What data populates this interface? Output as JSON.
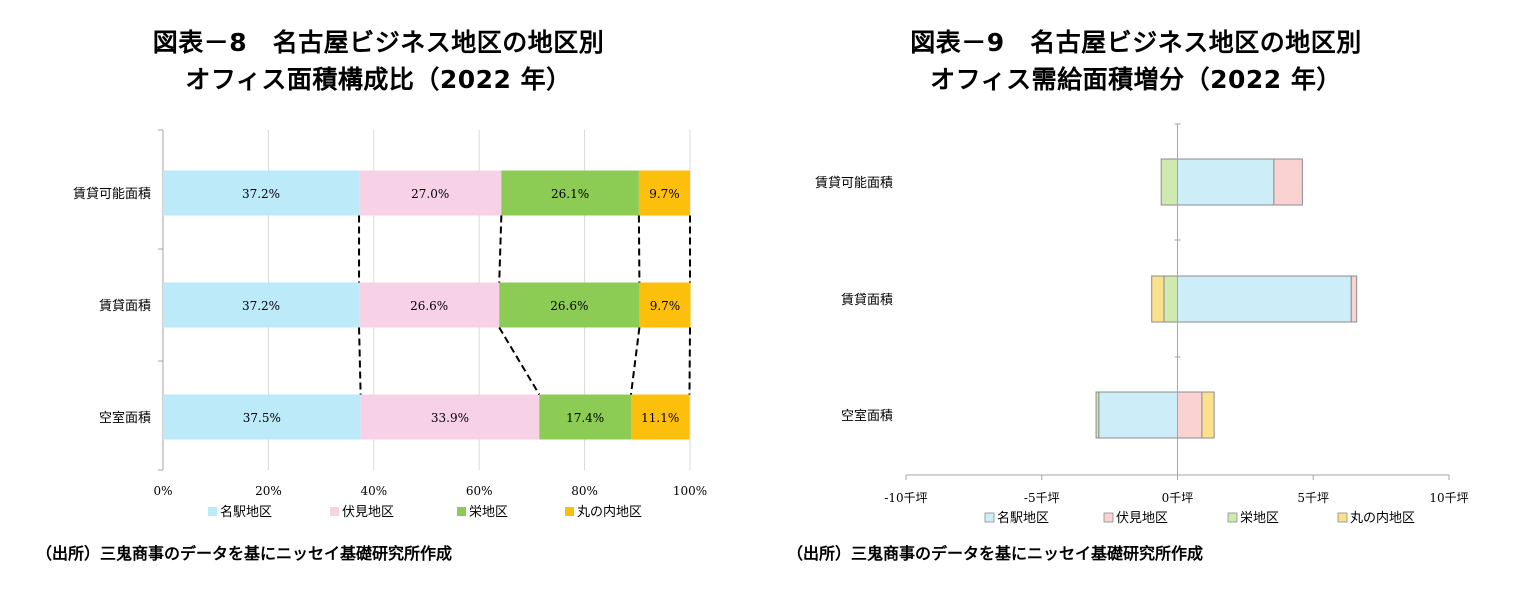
{
  "source_left": "（出所）三鬼商事のデータを基にニッセイ基礎研究所作成",
  "source_right": "（出所）三鬼商事のデータを基にニッセイ基礎研究所作成",
  "colors": {
    "meieki": "#bdeaf8",
    "fushimi": "#f7d2e7",
    "sakae": "#8ccc55",
    "marunouchi": "#fcbf0c",
    "r_meieki": "#cdeef8",
    "r_fushimi": "#fad2d2",
    "r_sakae": "#cfe9b0",
    "r_marunouchi": "#fbe18e",
    "axis": "#a6a6a6"
  },
  "chart_data": [
    {
      "type": "bar",
      "stacked": "percent",
      "orientation": "horizontal",
      "title": "図表－8　名古屋ビジネス地区の地区別",
      "subtitle": "オフィス面積構成比（2022 年）",
      "categories": [
        "賃貸可能面積",
        "賃貸面積",
        "空室面積"
      ],
      "series": [
        {
          "name": "名駅地区",
          "values": [
            37.2,
            37.2,
            37.5
          ],
          "labels": [
            "37.2%",
            "37.2%",
            "37.5%"
          ]
        },
        {
          "name": "伏見地区",
          "values": [
            27.0,
            26.6,
            33.9
          ],
          "labels": [
            "27.0%",
            "26.6%",
            "33.9%"
          ]
        },
        {
          "name": "栄地区",
          "values": [
            26.1,
            26.6,
            17.4
          ],
          "labels": [
            "26.1%",
            "26.6%",
            "17.4%"
          ]
        },
        {
          "name": "丸の内地区",
          "values": [
            9.7,
            9.7,
            11.1
          ],
          "labels": [
            "9.7%",
            "9.7%",
            "11.1%"
          ]
        }
      ],
      "xlim": [
        0,
        100
      ],
      "xticks": [
        "0%",
        "20%",
        "40%",
        "60%",
        "80%",
        "100%"
      ],
      "series_lines": true,
      "legend": "bottom"
    },
    {
      "type": "bar",
      "stacked": "diverging",
      "orientation": "horizontal",
      "title": "図表－9　名古屋ビジネス地区の地区別",
      "subtitle": "オフィス需給面積増分（2022 年）",
      "categories": [
        "賃貸可能面積",
        "賃貸面積",
        "空室面積"
      ],
      "series": [
        {
          "name": "名駅地区",
          "values": [
            3.55,
            6.4,
            -2.9
          ]
        },
        {
          "name": "伏見地区",
          "values": [
            1.05,
            0.2,
            0.9
          ]
        },
        {
          "name": "栄地区",
          "values": [
            -0.6,
            -0.5,
            -0.1
          ]
        },
        {
          "name": "丸の内地区",
          "values": [
            0.0,
            -0.45,
            0.45
          ]
        }
      ],
      "xlim": [
        -10,
        10
      ],
      "xticks": [
        "-10千坪",
        "-5千坪",
        "0千坪",
        "5千坪",
        "10千坪"
      ],
      "legend": "bottom"
    }
  ]
}
